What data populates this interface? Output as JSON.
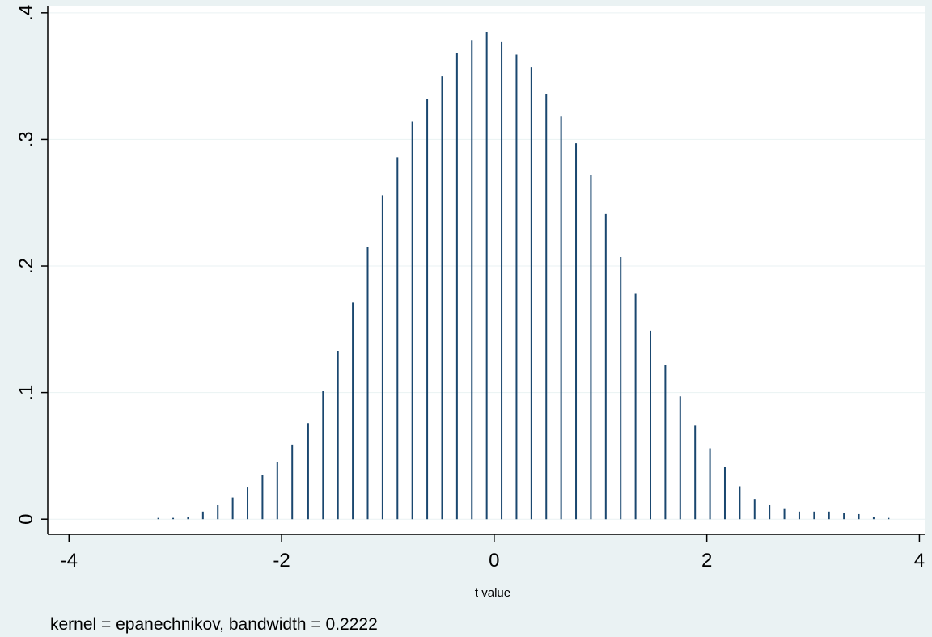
{
  "chart_data": {
    "type": "bar",
    "style": "spike",
    "title": "",
    "xlabel": "t value",
    "ylabel": "",
    "note": "kernel = epanechnikov, bandwidth = 0.2222",
    "xlim": [
      -4.2,
      4.05
    ],
    "ylim": [
      -0.012,
      0.405
    ],
    "xticks": [
      -4,
      -2,
      0,
      2,
      4
    ],
    "xtick_labels": [
      "-4",
      "-2",
      "0",
      "2",
      "4"
    ],
    "yticks": [
      0,
      0.1,
      0.2,
      0.3,
      0.4
    ],
    "ytick_labels": [
      "0",
      ".1",
      ".2",
      ".3",
      ".4"
    ],
    "grid": true,
    "legend": "none",
    "colors": {
      "background": "#eaf2f3",
      "plot_background": "#ffffff",
      "spike": "#1a476f",
      "grid": "#eaf2f3",
      "axis": "#000000"
    },
    "x": [
      -3.16,
      -3.02,
      -2.88,
      -2.74,
      -2.6,
      -2.46,
      -2.32,
      -2.18,
      -2.04,
      -1.9,
      -1.75,
      -1.61,
      -1.47,
      -1.33,
      -1.19,
      -1.05,
      -0.91,
      -0.77,
      -0.63,
      -0.49,
      -0.35,
      -0.21,
      -0.07,
      0.07,
      0.21,
      0.35,
      0.49,
      0.63,
      0.77,
      0.91,
      1.05,
      1.19,
      1.33,
      1.47,
      1.61,
      1.75,
      1.89,
      2.03,
      2.17,
      2.31,
      2.45,
      2.59,
      2.73,
      2.87,
      3.01,
      3.15,
      3.29,
      3.43,
      3.57,
      3.71
    ],
    "values": [
      0.001,
      0.001,
      0.002,
      0.006,
      0.011,
      0.017,
      0.025,
      0.035,
      0.045,
      0.059,
      0.076,
      0.101,
      0.133,
      0.171,
      0.215,
      0.256,
      0.286,
      0.314,
      0.332,
      0.35,
      0.368,
      0.378,
      0.385,
      0.377,
      0.367,
      0.357,
      0.336,
      0.318,
      0.297,
      0.272,
      0.241,
      0.207,
      0.178,
      0.149,
      0.122,
      0.097,
      0.074,
      0.056,
      0.041,
      0.026,
      0.016,
      0.011,
      0.008,
      0.006,
      0.006,
      0.006,
      0.005,
      0.004,
      0.002,
      0.001
    ]
  }
}
